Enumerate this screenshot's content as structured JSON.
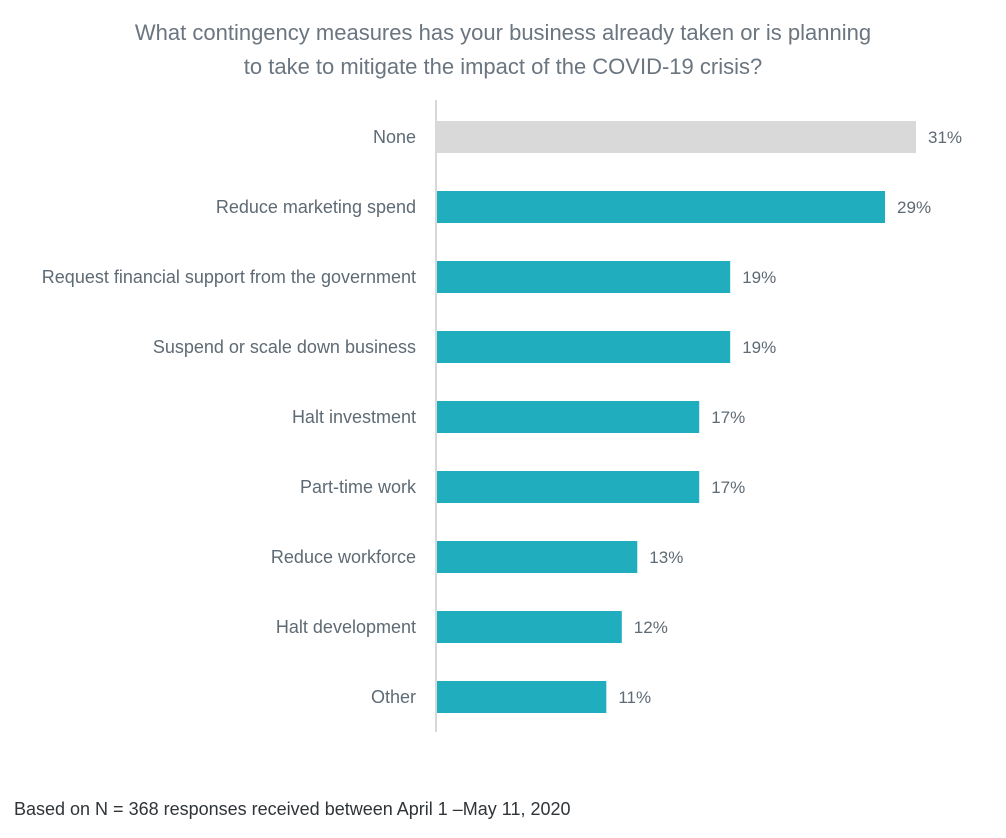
{
  "chart_data": {
    "type": "bar",
    "orientation": "horizontal",
    "title_line1": "What contingency measures has your business already taken or is planning",
    "title_line2": "to take to mitigate the impact of the COVID-19 crisis?",
    "categories": [
      "None",
      "Reduce marketing spend",
      "Request financial support from the government",
      "Suspend or scale down business",
      "Halt investment",
      "Part-time work",
      "Reduce workforce",
      "Halt development",
      "Other"
    ],
    "values": [
      31,
      29,
      19,
      19,
      17,
      17,
      13,
      12,
      11
    ],
    "value_labels": [
      "31%",
      "29%",
      "19%",
      "19%",
      "17%",
      "17%",
      "13%",
      "12%",
      "11%"
    ],
    "colors": [
      "#d9d9d9",
      "#20adbd",
      "#20adbd",
      "#20adbd",
      "#20adbd",
      "#20adbd",
      "#20adbd",
      "#20adbd",
      "#20adbd"
    ],
    "xlim": [
      0,
      31
    ],
    "grid": false,
    "footnote": "Based on N = 368 responses received between April 1 –May 11, 2020"
  }
}
